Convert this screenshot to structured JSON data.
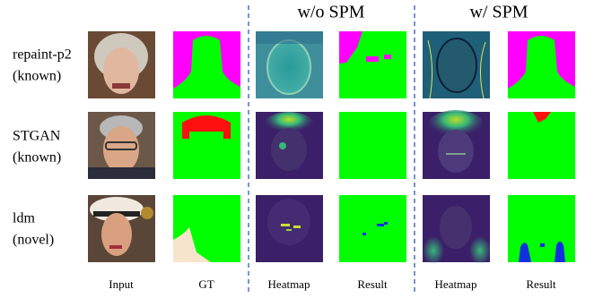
{
  "headers": [
    "w/o SPM",
    "w/ SPM"
  ],
  "rows": [
    {
      "label": [
        "repaint-p2",
        "(known)"
      ]
    },
    {
      "label": [
        "STGAN",
        "(known)"
      ]
    },
    {
      "label": [
        "ldm",
        "(novel)"
      ]
    }
  ],
  "columns": [
    "Input",
    "GT",
    "Heatmap",
    "Result",
    "Heatmap",
    "Result"
  ]
}
